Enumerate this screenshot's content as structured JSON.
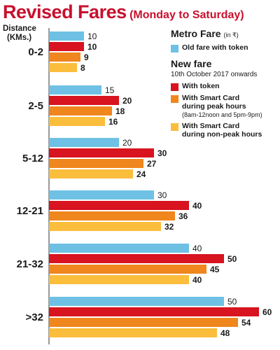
{
  "header": {
    "title": "Revised Fares",
    "subtitle": "(Monday to Saturday)"
  },
  "axis": {
    "line1": "Distance",
    "line2": "(KMs.)"
  },
  "legend": {
    "old_title": "Metro Fare",
    "old_unit": "(in ₹)",
    "old_item": "Old fare with token",
    "new_title": "New fare",
    "new_date": "10th October 2017 onwards",
    "item_token": "With token",
    "item_peak_line1": "With Smart Card",
    "item_peak_line2": "during peak hours",
    "item_peak_note": "(8am-12noon and 5pm-9pm)",
    "item_offpeak_line1": "With Smart Card",
    "item_offpeak_line2": "during non-peak hours"
  },
  "colors": {
    "old": "#6ec1e4",
    "token": "#d7141f",
    "peak": "#f0861e",
    "offpeak": "#fbbd3c"
  },
  "chart_data": {
    "type": "bar",
    "orientation": "horizontal",
    "categories": [
      "0-2",
      "2-5",
      "5-12",
      "12-21",
      "21-32",
      ">32"
    ],
    "series": [
      {
        "name": "Old fare with token",
        "values": [
          10,
          15,
          20,
          30,
          40,
          50
        ]
      },
      {
        "name": "With token",
        "values": [
          10,
          20,
          30,
          40,
          50,
          60
        ]
      },
      {
        "name": "With Smart Card during peak hours",
        "values": [
          9,
          18,
          27,
          36,
          45,
          54
        ]
      },
      {
        "name": "With Smart Card during non-peak hours",
        "values": [
          8,
          16,
          24,
          32,
          40,
          48
        ]
      }
    ],
    "xlim": [
      0,
      60
    ],
    "grid": false,
    "legend_position": "right"
  }
}
